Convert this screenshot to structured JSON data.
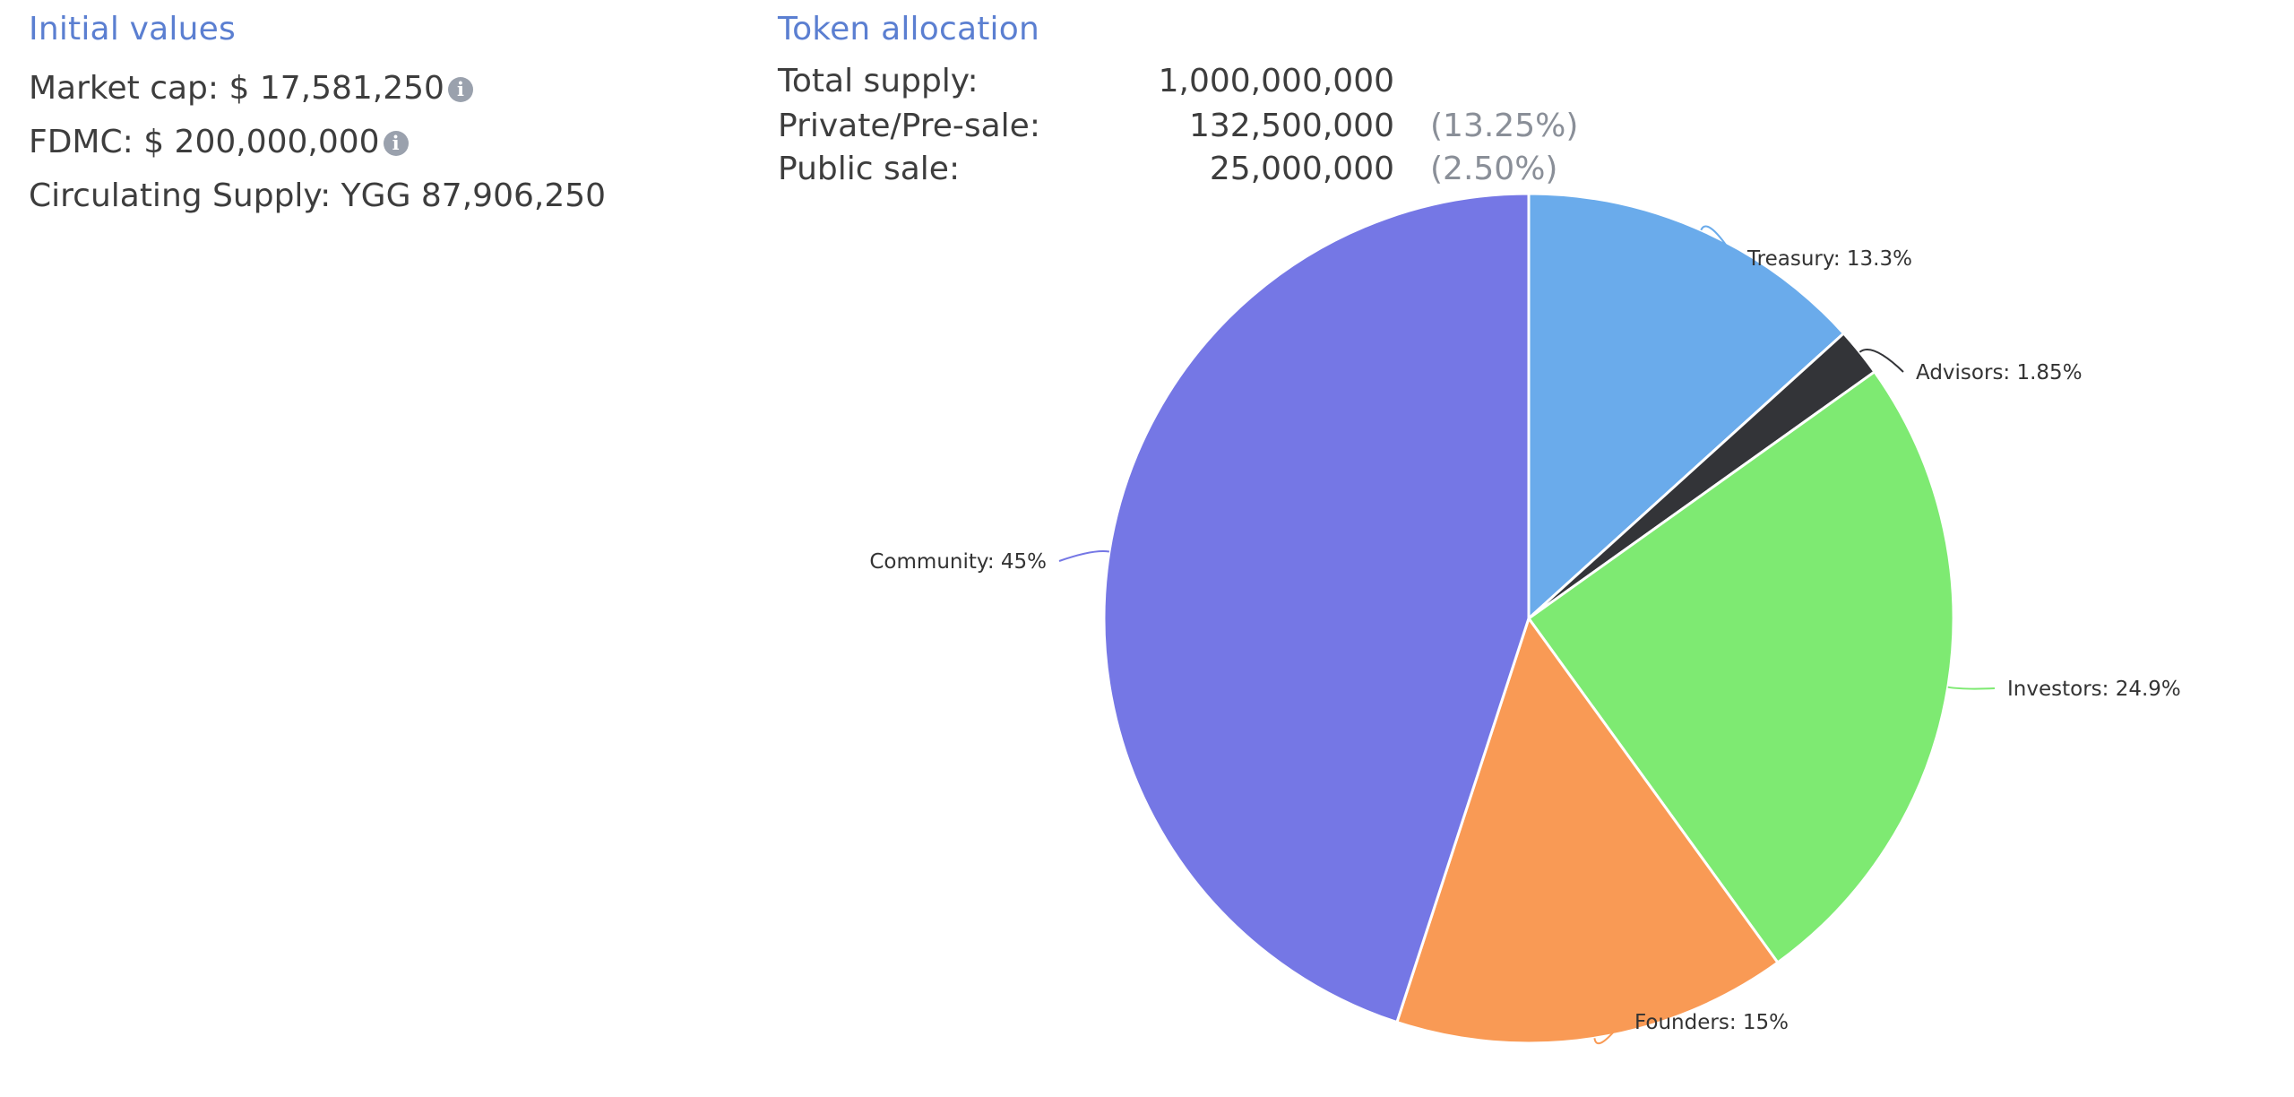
{
  "initial_values": {
    "title": "Initial values",
    "market_cap": "Market cap: $ 17,581,250",
    "fdmc": "FDMC: $ 200,000,000",
    "circulating_supply": "Circulating Supply: YGG 87,906,250",
    "info_icon": "info-icon"
  },
  "token_allocation": {
    "title": "Token allocation",
    "rows": [
      {
        "label": "Total supply:",
        "value": "1,000,000,000",
        "pct": ""
      },
      {
        "label": "Private/Pre-sale:",
        "value": "132,500,000",
        "pct": "(13.25%)"
      },
      {
        "label": "Public sale:",
        "value": "25,000,000",
        "pct": "(2.50%)"
      }
    ]
  },
  "chart_data": {
    "type": "pie",
    "title": "",
    "slices": [
      {
        "name": "Treasury",
        "value": 13.3,
        "label": "Treasury: 13.3%",
        "color": "#6aabeb"
      },
      {
        "name": "Advisors",
        "value": 1.85,
        "label": "Advisors: 1.85%",
        "color": "#333438"
      },
      {
        "name": "Investors",
        "value": 24.9,
        "label": "Investors: 24.9%",
        "color": "#7eea72"
      },
      {
        "name": "Founders",
        "value": 15,
        "label": "Founders: 15%",
        "color": "#f99a55"
      },
      {
        "name": "Community",
        "value": 45,
        "label": "Community: 45%",
        "color": "#7577e5"
      }
    ],
    "start_angle": "12 o'clock",
    "direction": "clockwise",
    "legend": "none"
  }
}
